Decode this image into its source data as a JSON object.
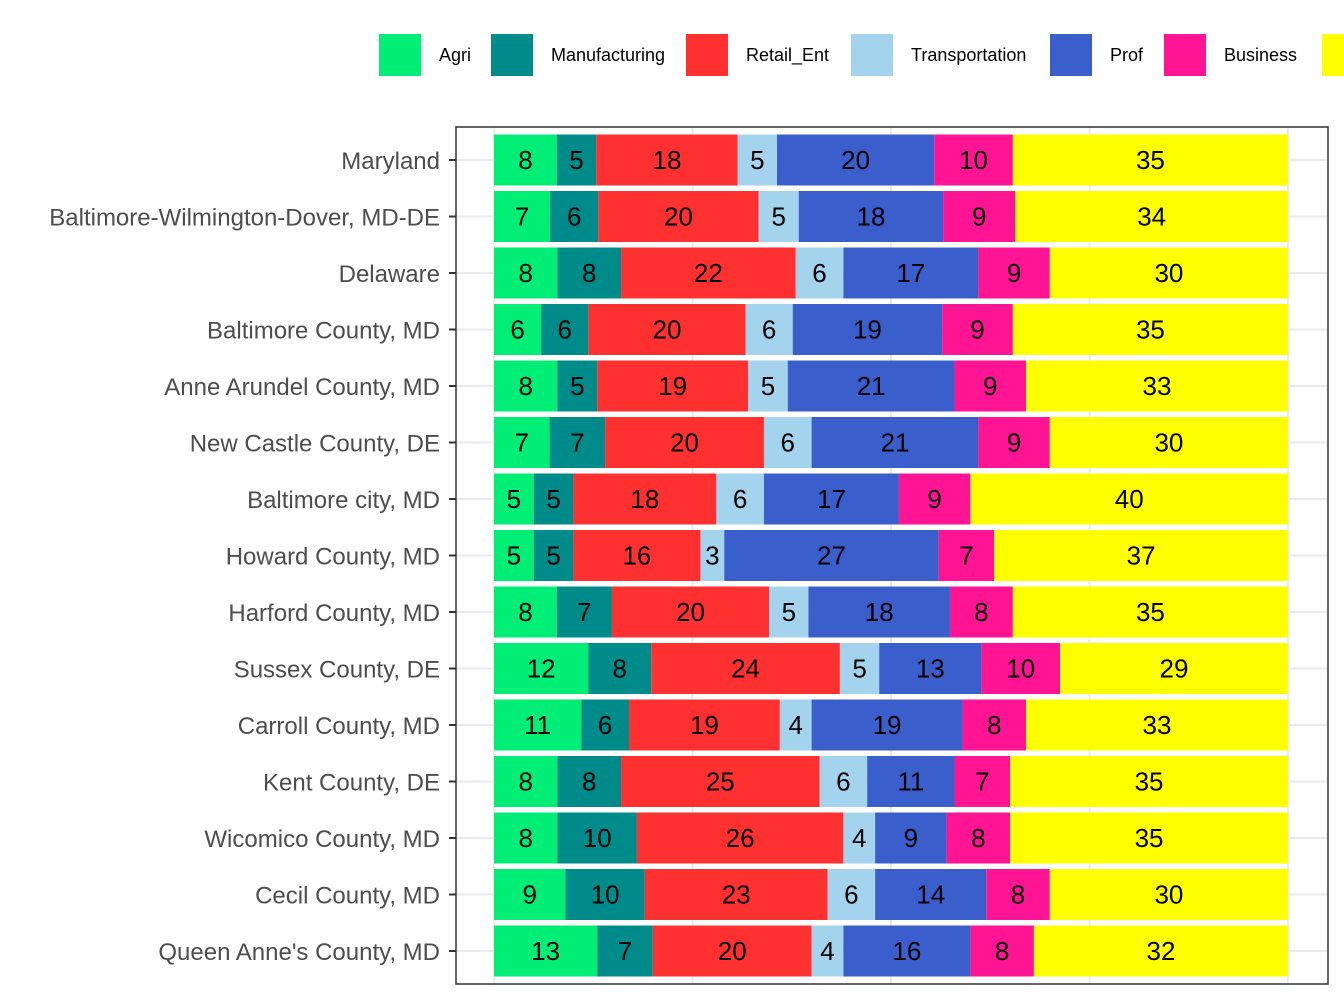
{
  "chart_data": {
    "type": "bar",
    "orientation": "horizontal",
    "stacked": true,
    "normalized": true,
    "categories": [
      "Maryland",
      "Baltimore-Wilmington-Dover, MD-DE",
      "Delaware",
      "Baltimore County, MD",
      "Anne Arundel County, MD",
      "New Castle County, DE",
      "Baltimore city, MD",
      "Howard County, MD",
      "Harford County, MD",
      "Sussex County, DE",
      "Carroll County, MD",
      "Kent County, DE",
      "Wicomico County, MD",
      "Cecil County, MD",
      "Queen Anne's County, MD"
    ],
    "series": [
      {
        "name": "Agri",
        "color": "#00EE76",
        "values": [
          8,
          7,
          8,
          6,
          8,
          7,
          5,
          5,
          8,
          12,
          11,
          8,
          8,
          9,
          13
        ]
      },
      {
        "name": "Manufacturing",
        "color": "#008B8B",
        "values": [
          5,
          6,
          8,
          6,
          5,
          7,
          5,
          5,
          7,
          8,
          6,
          8,
          10,
          10,
          7
        ]
      },
      {
        "name": "Retail_Ent",
        "color": "#FF3030",
        "values": [
          18,
          20,
          22,
          20,
          19,
          20,
          18,
          16,
          20,
          24,
          19,
          25,
          26,
          23,
          20
        ]
      },
      {
        "name": "Transportation",
        "color": "#A4D3EE",
        "values": [
          5,
          5,
          6,
          6,
          5,
          6,
          6,
          3,
          5,
          5,
          4,
          6,
          4,
          6,
          4
        ]
      },
      {
        "name": "Prof",
        "color": "#3A5FCD",
        "values": [
          20,
          18,
          17,
          19,
          21,
          21,
          17,
          27,
          18,
          13,
          19,
          11,
          9,
          14,
          16
        ]
      },
      {
        "name": "Business",
        "color": "#FF1493",
        "values": [
          10,
          9,
          9,
          9,
          9,
          9,
          9,
          7,
          8,
          10,
          8,
          7,
          8,
          8,
          8
        ]
      },
      {
        "name": "",
        "color": "#FFFF00",
        "values": [
          35,
          34,
          30,
          35,
          33,
          30,
          40,
          37,
          35,
          29,
          33,
          35,
          35,
          30,
          32
        ]
      }
    ],
    "grid": true,
    "legend_position": "top"
  }
}
